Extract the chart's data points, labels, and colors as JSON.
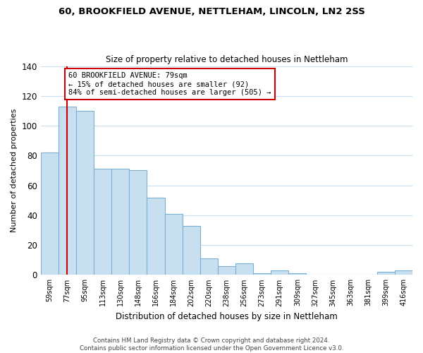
{
  "title1": "60, BROOKFIELD AVENUE, NETTLEHAM, LINCOLN, LN2 2SS",
  "title2": "Size of property relative to detached houses in Nettleham",
  "xlabel": "Distribution of detached houses by size in Nettleham",
  "ylabel": "Number of detached properties",
  "bar_labels": [
    "59sqm",
    "77sqm",
    "95sqm",
    "113sqm",
    "130sqm",
    "148sqm",
    "166sqm",
    "184sqm",
    "202sqm",
    "220sqm",
    "238sqm",
    "256sqm",
    "273sqm",
    "291sqm",
    "309sqm",
    "327sqm",
    "345sqm",
    "363sqm",
    "381sqm",
    "399sqm",
    "416sqm"
  ],
  "bar_values": [
    82,
    113,
    110,
    71,
    71,
    70,
    52,
    41,
    33,
    11,
    6,
    8,
    1,
    3,
    1,
    0,
    0,
    0,
    0,
    2,
    3
  ],
  "bar_color": "#c8dff0",
  "bar_edge_color": "#7bafd4",
  "vline_x": 1,
  "vline_color": "#cc0000",
  "annotation_line1": "60 BROOKFIELD AVENUE: 79sqm",
  "annotation_line2": "← 15% of detached houses are smaller (92)",
  "annotation_line3": "84% of semi-detached houses are larger (505) →",
  "annotation_box_color": "#ffffff",
  "annotation_box_edge": "#cc0000",
  "ylim": [
    0,
    140
  ],
  "yticks": [
    0,
    20,
    40,
    60,
    80,
    100,
    120,
    140
  ],
  "footer_text": "Contains HM Land Registry data © Crown copyright and database right 2024.\nContains public sector information licensed under the Open Government Licence v3.0.",
  "bg_color": "#ffffff",
  "grid_color": "#c8dff0"
}
